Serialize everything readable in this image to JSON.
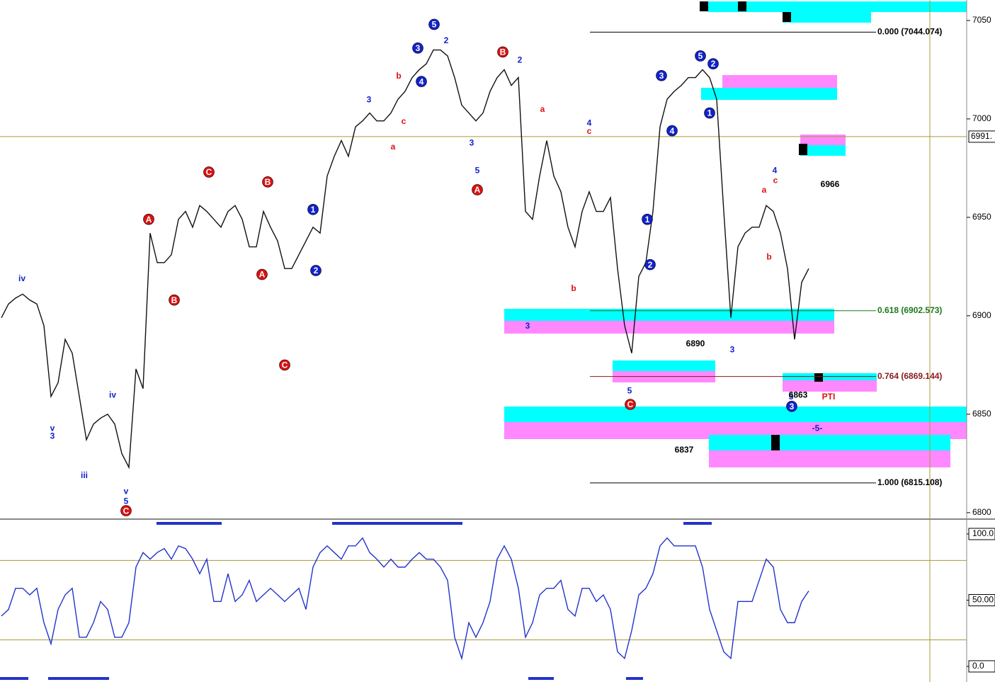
{
  "chart_data": [
    {
      "type": "line",
      "ylim": [
        6797.8,
        7060.4
      ],
      "yticks": [
        7050,
        7000,
        6950,
        6900,
        6850,
        6800
      ],
      "price_marker": {
        "value": 6991,
        "label": "6991."
      },
      "series": [
        {
          "color": "#111111",
          "values": [
            6899,
            6906,
            6909,
            6911,
            6908,
            6906,
            6895,
            6859,
            6866,
            6888,
            6881,
            6859,
            6837,
            6845,
            6848,
            6850,
            6845,
            6830,
            6823,
            6873,
            6863,
            6942,
            6927,
            6927,
            6931,
            6949,
            6953,
            6945,
            6956,
            6953,
            6949,
            6945,
            6953,
            6956,
            6949,
            6935,
            6935,
            6953,
            6945,
            6938,
            6924,
            6924,
            6931,
            6938,
            6945,
            6942,
            6971,
            6981,
            6989,
            6981,
            6996,
            6999,
            7003,
            6999,
            6999,
            7003,
            7010,
            7014,
            7021,
            7025,
            7028,
            7035,
            7035,
            7032,
            7021,
            7007,
            7003,
            6999,
            7003,
            7014,
            7021,
            7025,
            7017,
            7021,
            6953,
            6949,
            6971,
            6989,
            6971,
            6963,
            6945,
            6935,
            6953,
            6963,
            6953,
            6953,
            6960,
            6924,
            6895,
            6881,
            6920,
            6927,
            6953,
            6996,
            7010,
            7014,
            7017,
            7021,
            7021,
            7025,
            7021,
            7010,
            6953,
            6899,
            6935,
            6942,
            6945,
            6945,
            6956,
            6953,
            6942,
            6924,
            6888,
            6917,
            6924
          ]
        }
      ],
      "fib_levels": [
        {
          "label": "0.000 (7044.074)",
          "value": 7044.074,
          "color": "#000000"
        },
        {
          "label": "0.618 (6902.573)",
          "value": 6902.573,
          "color": "#1a7a1a"
        },
        {
          "label": "0.764 (6869.144)",
          "value": 6869.144,
          "color": "#8b1a1a"
        },
        {
          "label": "1.000 (6815.108)",
          "value": 6815.108,
          "color": "#000000"
        }
      ],
      "annotations": [
        {
          "text": "5",
          "x": 61.1,
          "y": 7048,
          "style": "blue-circle"
        },
        {
          "text": "3",
          "x": 58.8,
          "y": 7036,
          "style": "blue-circle"
        },
        {
          "text": "4",
          "x": 59.3,
          "y": 7019,
          "style": "blue-circle"
        },
        {
          "text": "B",
          "x": 70.8,
          "y": 7034,
          "style": "red-circle"
        },
        {
          "text": "A",
          "x": 67.2,
          "y": 6964,
          "style": "red-circle"
        },
        {
          "text": "C",
          "x": 29.3,
          "y": 6973,
          "style": "red-circle"
        },
        {
          "text": "B",
          "x": 37.6,
          "y": 6968,
          "style": "red-circle"
        },
        {
          "text": "A",
          "x": 20.8,
          "y": 6949,
          "style": "red-circle"
        },
        {
          "text": "B",
          "x": 24.4,
          "y": 6908,
          "style": "red-circle"
        },
        {
          "text": "A",
          "x": 36.8,
          "y": 6921,
          "style": "red-circle"
        },
        {
          "text": "C",
          "x": 40,
          "y": 6875,
          "style": "red-circle"
        },
        {
          "text": "C",
          "x": 17.6,
          "y": 6801,
          "style": "red-circle"
        },
        {
          "text": "C",
          "x": 88.8,
          "y": 6855,
          "style": "red-circle"
        },
        {
          "text": "1",
          "x": 44,
          "y": 6954,
          "style": "blue-circle"
        },
        {
          "text": "2",
          "x": 44.4,
          "y": 6923,
          "style": "blue-circle"
        },
        {
          "text": "3",
          "x": 93.2,
          "y": 7022,
          "style": "blue-circle"
        },
        {
          "text": "5",
          "x": 98.7,
          "y": 7032,
          "style": "blue-circle"
        },
        {
          "text": "2",
          "x": 100.5,
          "y": 7028,
          "style": "blue-circle"
        },
        {
          "text": "1",
          "x": 100,
          "y": 7003,
          "style": "blue-circle"
        },
        {
          "text": "4",
          "x": 94.7,
          "y": 6994,
          "style": "blue-circle"
        },
        {
          "text": "1",
          "x": 91.2,
          "y": 6949,
          "style": "blue-circle"
        },
        {
          "text": "2",
          "x": 91.6,
          "y": 6926,
          "style": "blue-circle"
        },
        {
          "text": "3",
          "x": 111.6,
          "y": 6854,
          "style": "blue-circle"
        },
        {
          "text": "3",
          "x": 74.3,
          "y": 6895,
          "style": "blue"
        },
        {
          "text": "5",
          "x": 88.7,
          "y": 6862,
          "style": "blue"
        },
        {
          "text": "3",
          "x": 103.2,
          "y": 6883,
          "style": "blue"
        },
        {
          "text": "5",
          "x": 111.5,
          "y": 6859,
          "style": "blue"
        },
        {
          "text": "iii",
          "x": 11.7,
          "y": 6819,
          "style": "blue"
        },
        {
          "text": "iv",
          "x": 2.9,
          "y": 6919,
          "style": "blue"
        },
        {
          "text": "v",
          "x": 7.2,
          "y": 6843,
          "style": "blue"
        },
        {
          "text": "3",
          "x": 7.2,
          "y": 6839,
          "style": "blue"
        },
        {
          "text": "iv",
          "x": 15.7,
          "y": 6860,
          "style": "blue"
        },
        {
          "text": "v",
          "x": 17.6,
          "y": 6811,
          "style": "blue"
        },
        {
          "text": "5",
          "x": 17.6,
          "y": 6806,
          "style": "blue"
        },
        {
          "text": "4",
          "x": 83,
          "y": 6998,
          "style": "blue"
        },
        {
          "text": "c",
          "x": 83,
          "y": 6994,
          "style": "red"
        },
        {
          "text": "b",
          "x": 80.8,
          "y": 6914,
          "style": "red"
        },
        {
          "text": "a",
          "x": 76.4,
          "y": 7005,
          "style": "red"
        },
        {
          "text": "a",
          "x": 55.3,
          "y": 6986,
          "style": "red"
        },
        {
          "text": "b",
          "x": 56.1,
          "y": 7022,
          "style": "red"
        },
        {
          "text": "c",
          "x": 56.8,
          "y": 6999,
          "style": "red"
        },
        {
          "text": "4",
          "x": 109.2,
          "y": 6974,
          "style": "blue"
        },
        {
          "text": "c",
          "x": 109.3,
          "y": 6969,
          "style": "red"
        },
        {
          "text": "a",
          "x": 107.7,
          "y": 6964,
          "style": "red"
        },
        {
          "text": "b",
          "x": 108.4,
          "y": 6930,
          "style": "red"
        },
        {
          "text": "2",
          "x": 62.8,
          "y": 7040,
          "style": "blue"
        },
        {
          "text": "2",
          "x": 73.2,
          "y": 7030,
          "style": "blue"
        },
        {
          "text": "3",
          "x": 51.9,
          "y": 7010,
          "style": "blue"
        },
        {
          "text": "3",
          "x": 66.4,
          "y": 6988,
          "style": "blue"
        },
        {
          "text": "5",
          "x": 67.2,
          "y": 6974,
          "style": "blue"
        },
        {
          "text": "6890",
          "x": 98,
          "y": 6886,
          "style": "black"
        },
        {
          "text": "6837",
          "x": 96.4,
          "y": 6832,
          "style": "black"
        },
        {
          "text": "6863",
          "x": 112.5,
          "y": 6860,
          "style": "black"
        },
        {
          "text": "6966",
          "x": 117,
          "y": 6967,
          "style": "black"
        },
        {
          "text": "PTI",
          "x": 116.8,
          "y": 6859,
          "style": "red"
        },
        {
          "text": "-5-",
          "x": 115.2,
          "y": 6843,
          "style": "blue"
        }
      ]
    },
    {
      "type": "line",
      "ylim": [
        -10.2,
        109.1
      ],
      "yticks": [
        {
          "value": 100,
          "label": "100.0"
        },
        {
          "value": 50,
          "label": "50.00"
        },
        {
          "value": 0,
          "label": "0.0"
        }
      ],
      "levels": [
        80,
        20
      ],
      "series": [
        {
          "color": "#2233cc",
          "values": [
            38,
            43,
            59,
            59,
            54,
            59,
            33,
            17,
            43,
            54,
            59,
            22,
            22,
            33,
            49,
            43,
            22,
            22,
            33,
            75,
            86,
            81,
            86,
            89,
            81,
            91,
            89,
            81,
            70,
            81,
            49,
            49,
            70,
            49,
            54,
            65,
            49,
            54,
            59,
            54,
            49,
            54,
            59,
            43,
            75,
            86,
            91,
            86,
            81,
            91,
            91,
            97,
            86,
            81,
            75,
            81,
            75,
            75,
            81,
            86,
            81,
            81,
            75,
            65,
            22,
            6,
            33,
            22,
            33,
            49,
            81,
            91,
            81,
            59,
            22,
            33,
            54,
            59,
            59,
            65,
            43,
            38,
            59,
            59,
            49,
            54,
            43,
            11,
            6,
            27,
            54,
            59,
            70,
            91,
            97,
            91,
            91,
            91,
            91,
            75,
            43,
            27,
            11,
            6,
            49,
            49,
            49,
            65,
            81,
            75,
            43,
            33,
            33,
            49,
            57
          ]
        }
      ]
    }
  ]
}
